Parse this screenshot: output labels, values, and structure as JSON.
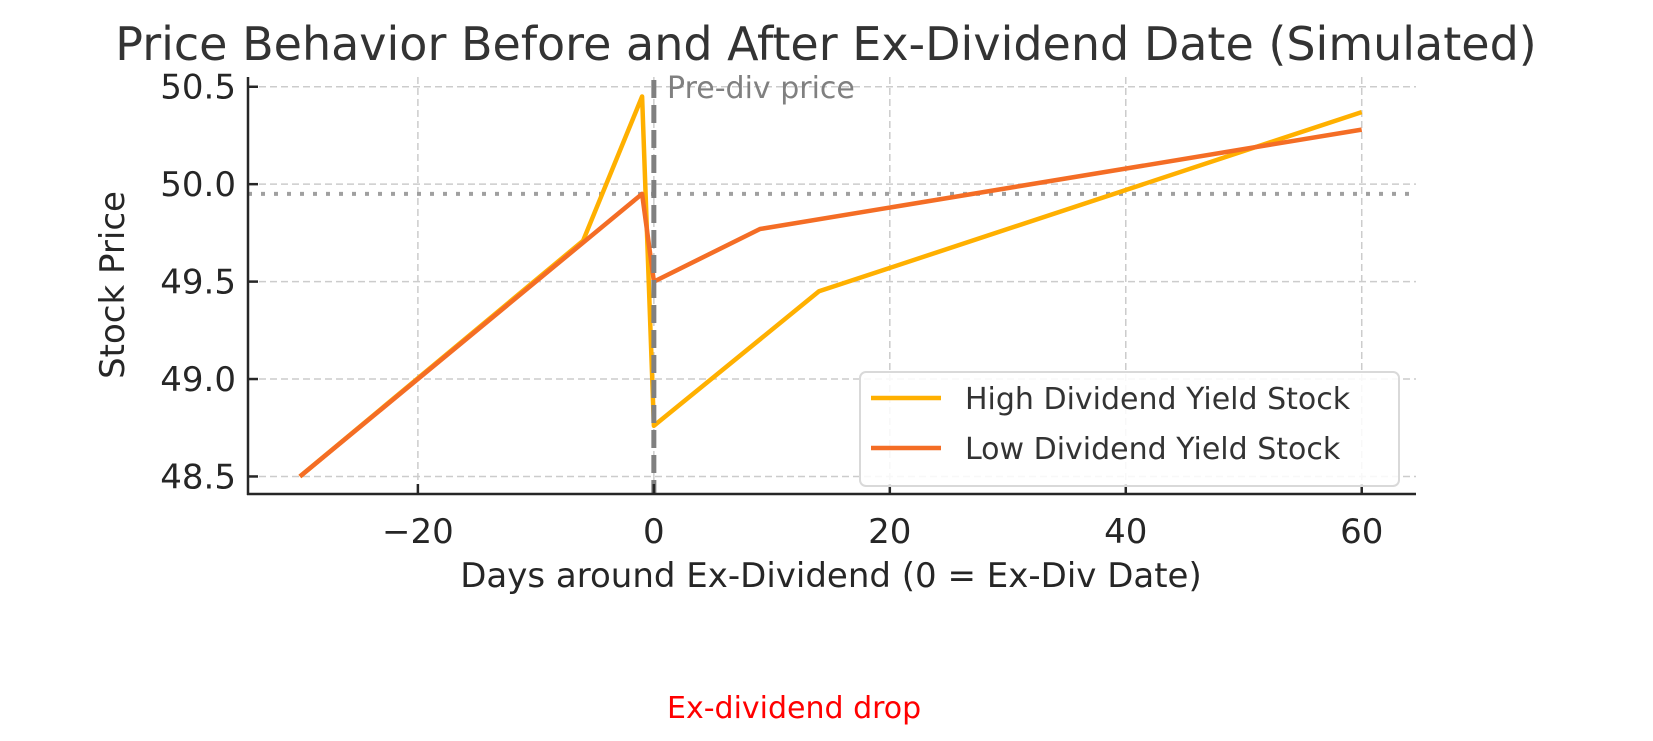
{
  "chart_data": {
    "type": "line",
    "title": "Price Behavior Before and After Ex-Dividend Date (Simulated)",
    "xlabel": "Days around Ex-Dividend (0 = Ex-Div Date)",
    "ylabel": "Stock Price",
    "xlim": [
      -34.4,
      64.6
    ],
    "ylim": [
      48.41,
      50.55
    ],
    "xticks": [
      -20,
      0,
      20,
      40,
      60
    ],
    "xtick_labels": [
      "−20",
      "0",
      "20",
      "40",
      "60"
    ],
    "yticks": [
      48.5,
      49.0,
      49.5,
      50.0,
      50.5
    ],
    "ytick_labels": [
      "48.5",
      "49.0",
      "49.5",
      "50.0",
      "50.5"
    ],
    "grid": true,
    "legend_position": "lower right",
    "series": [
      {
        "name": "High Dividend Yield Stock",
        "color": "#FFB000",
        "x": [
          -30,
          -6,
          -1,
          0,
          14,
          60
        ],
        "y": [
          48.5,
          49.71,
          50.45,
          48.76,
          49.45,
          50.37
        ]
      },
      {
        "name": "Low Dividend Yield Stock",
        "color": "#F46D25",
        "x": [
          -30,
          -1,
          0,
          9,
          60
        ],
        "y": [
          48.5,
          49.95,
          49.5,
          49.77,
          50.28
        ]
      }
    ],
    "reference_lines": {
      "vertical": {
        "x": 0,
        "style": "dashed",
        "color": "#808080"
      },
      "horizontal": {
        "y": 49.95,
        "style": "dotted",
        "color": "#a0a0a0"
      }
    },
    "annotations": [
      {
        "text": "Pre-div price",
        "color": "#808080"
      },
      {
        "text": "Ex-dividend drop",
        "color": "#ff0000"
      }
    ]
  }
}
